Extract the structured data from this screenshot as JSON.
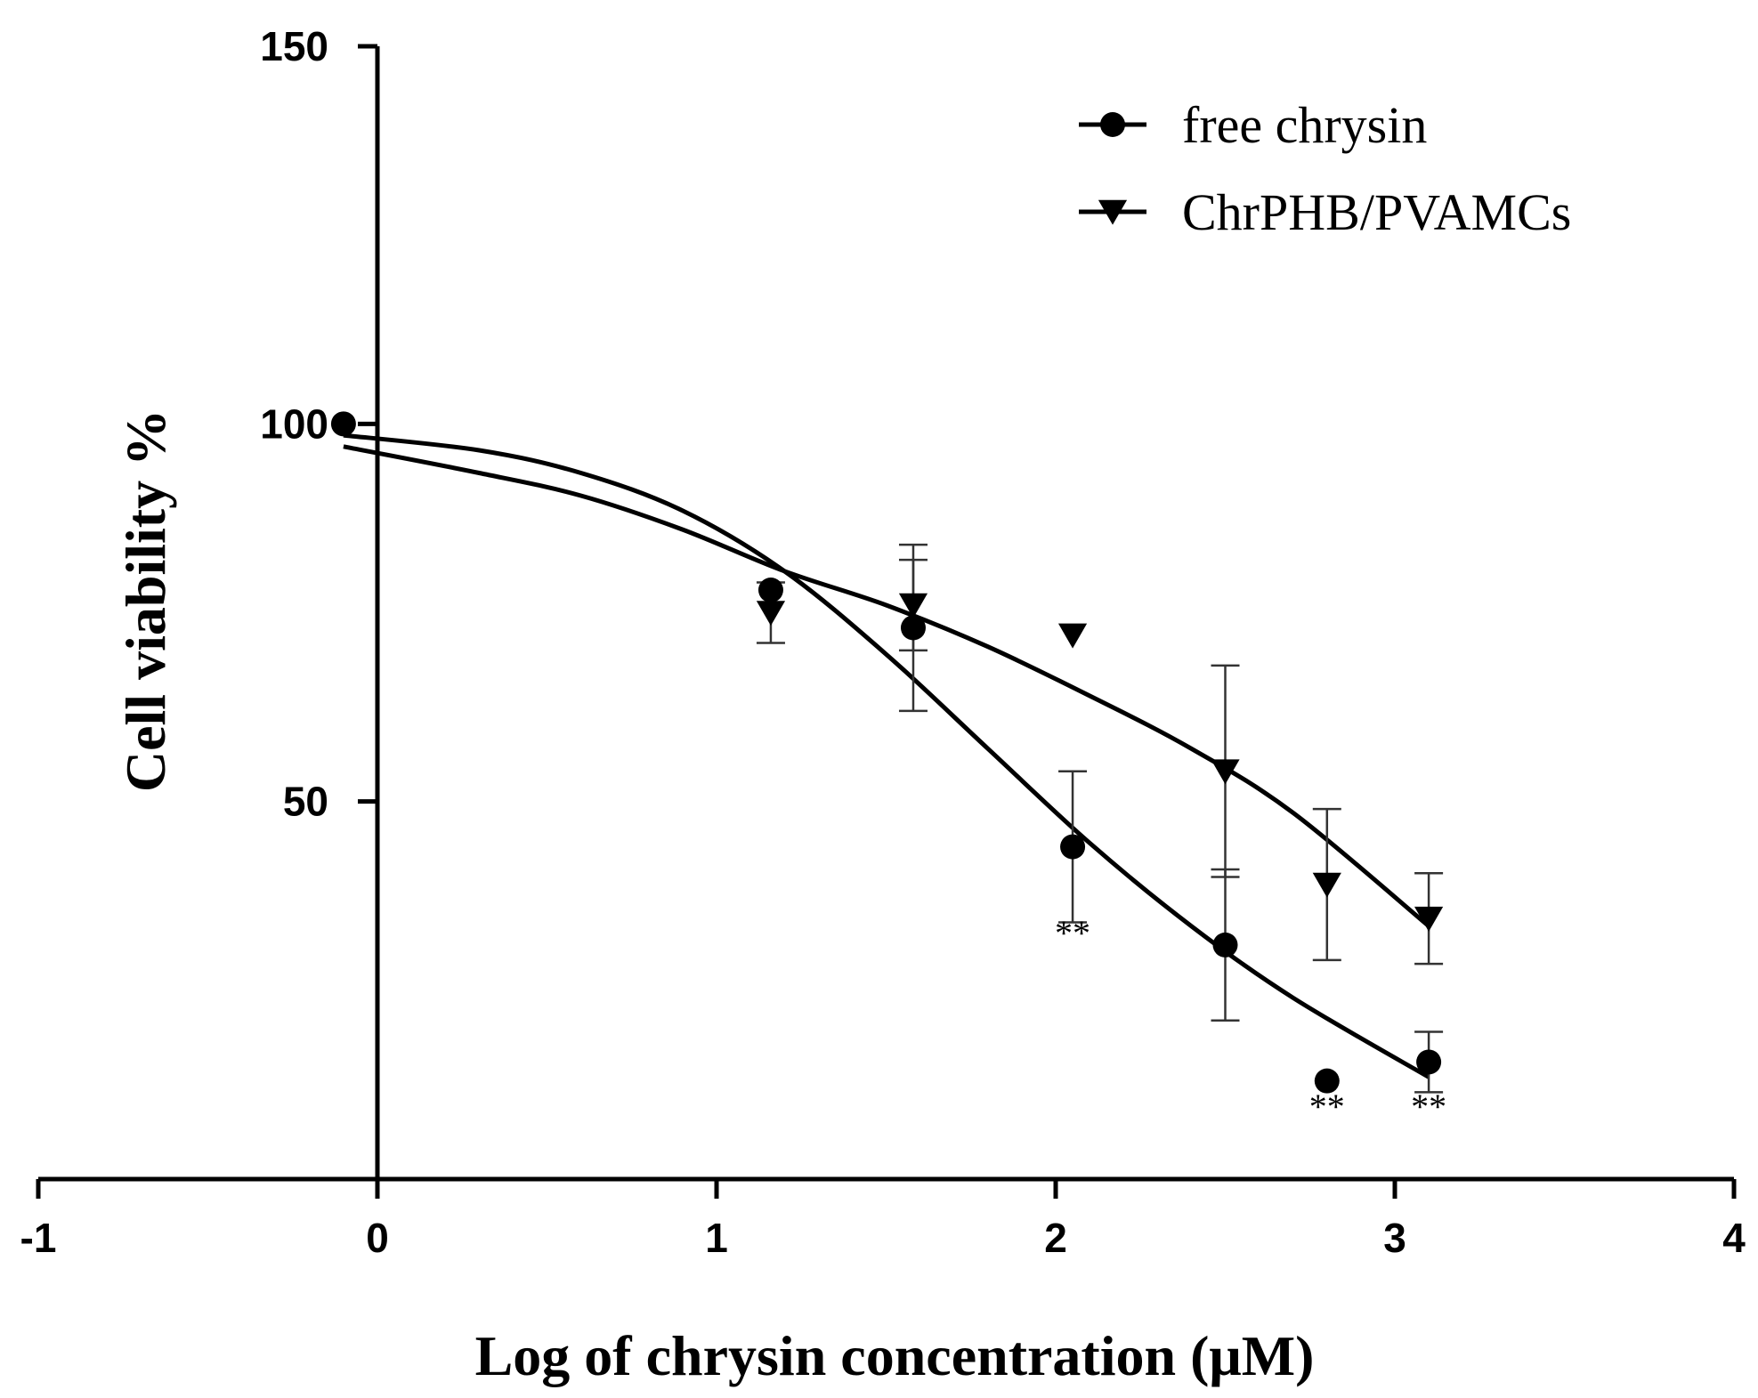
{
  "chart_data": {
    "type": "scatter",
    "title": "",
    "xlabel": "Log of chrysin concentration (μM)",
    "ylabel": "Cell viability %",
    "xlim": [
      -1,
      4
    ],
    "ylim": [
      0,
      150
    ],
    "x_ticks": [
      -1,
      0,
      1,
      2,
      3,
      4
    ],
    "x_tick_labels": [
      "-1",
      "0",
      "1",
      "2",
      "3",
      "4"
    ],
    "y_ticks": [
      50,
      100,
      150
    ],
    "y_tick_labels": [
      "50",
      "100",
      "150"
    ],
    "legend_position": "top-right",
    "series": [
      {
        "name": "free chrysin",
        "marker": "circle",
        "points": [
          {
            "x": -0.1,
            "y": 100,
            "err": 0
          },
          {
            "x": 1.16,
            "y": 78,
            "err": 0
          },
          {
            "x": 1.58,
            "y": 73,
            "err": 11
          },
          {
            "x": 2.05,
            "y": 44,
            "err": 10
          },
          {
            "x": 2.5,
            "y": 31,
            "err": 10
          },
          {
            "x": 2.8,
            "y": 13,
            "err": 0
          },
          {
            "x": 3.1,
            "y": 15.5,
            "err": 4
          }
        ],
        "fit": [
          {
            "x": -0.1,
            "y": 98.5
          },
          {
            "x": 0.3,
            "y": 96.5
          },
          {
            "x": 0.6,
            "y": 93.5
          },
          {
            "x": 0.9,
            "y": 88.5
          },
          {
            "x": 1.2,
            "y": 80.5
          },
          {
            "x": 1.5,
            "y": 69.5
          },
          {
            "x": 1.8,
            "y": 57
          },
          {
            "x": 2.1,
            "y": 44.5
          },
          {
            "x": 2.4,
            "y": 33.5
          },
          {
            "x": 2.7,
            "y": 24
          },
          {
            "x": 3.1,
            "y": 13.5
          }
        ]
      },
      {
        "name": "ChrPHB/PVAMCs",
        "marker": "triangle-down",
        "points": [
          {
            "x": 1.16,
            "y": 75,
            "err": 4
          },
          {
            "x": 1.58,
            "y": 76,
            "err": 6
          },
          {
            "x": 2.05,
            "y": 72,
            "err": 0
          },
          {
            "x": 2.5,
            "y": 54,
            "err": 14
          },
          {
            "x": 2.8,
            "y": 39,
            "err": 10
          },
          {
            "x": 3.1,
            "y": 34.5,
            "err": 6
          }
        ],
        "fit": [
          {
            "x": -0.1,
            "y": 97
          },
          {
            "x": 0.3,
            "y": 93.5
          },
          {
            "x": 0.6,
            "y": 90.5
          },
          {
            "x": 0.9,
            "y": 86
          },
          {
            "x": 1.2,
            "y": 80.5
          },
          {
            "x": 1.5,
            "y": 76
          },
          {
            "x": 1.8,
            "y": 70.5
          },
          {
            "x": 2.1,
            "y": 64
          },
          {
            "x": 2.4,
            "y": 57
          },
          {
            "x": 2.7,
            "y": 48.5
          },
          {
            "x": 3.1,
            "y": 33.5
          }
        ]
      }
    ],
    "annotations": [
      {
        "text": "**",
        "x": 2.05,
        "y": 31
      },
      {
        "text": "**",
        "x": 2.8,
        "y": 8
      },
      {
        "text": "**",
        "x": 3.1,
        "y": 8
      }
    ]
  }
}
